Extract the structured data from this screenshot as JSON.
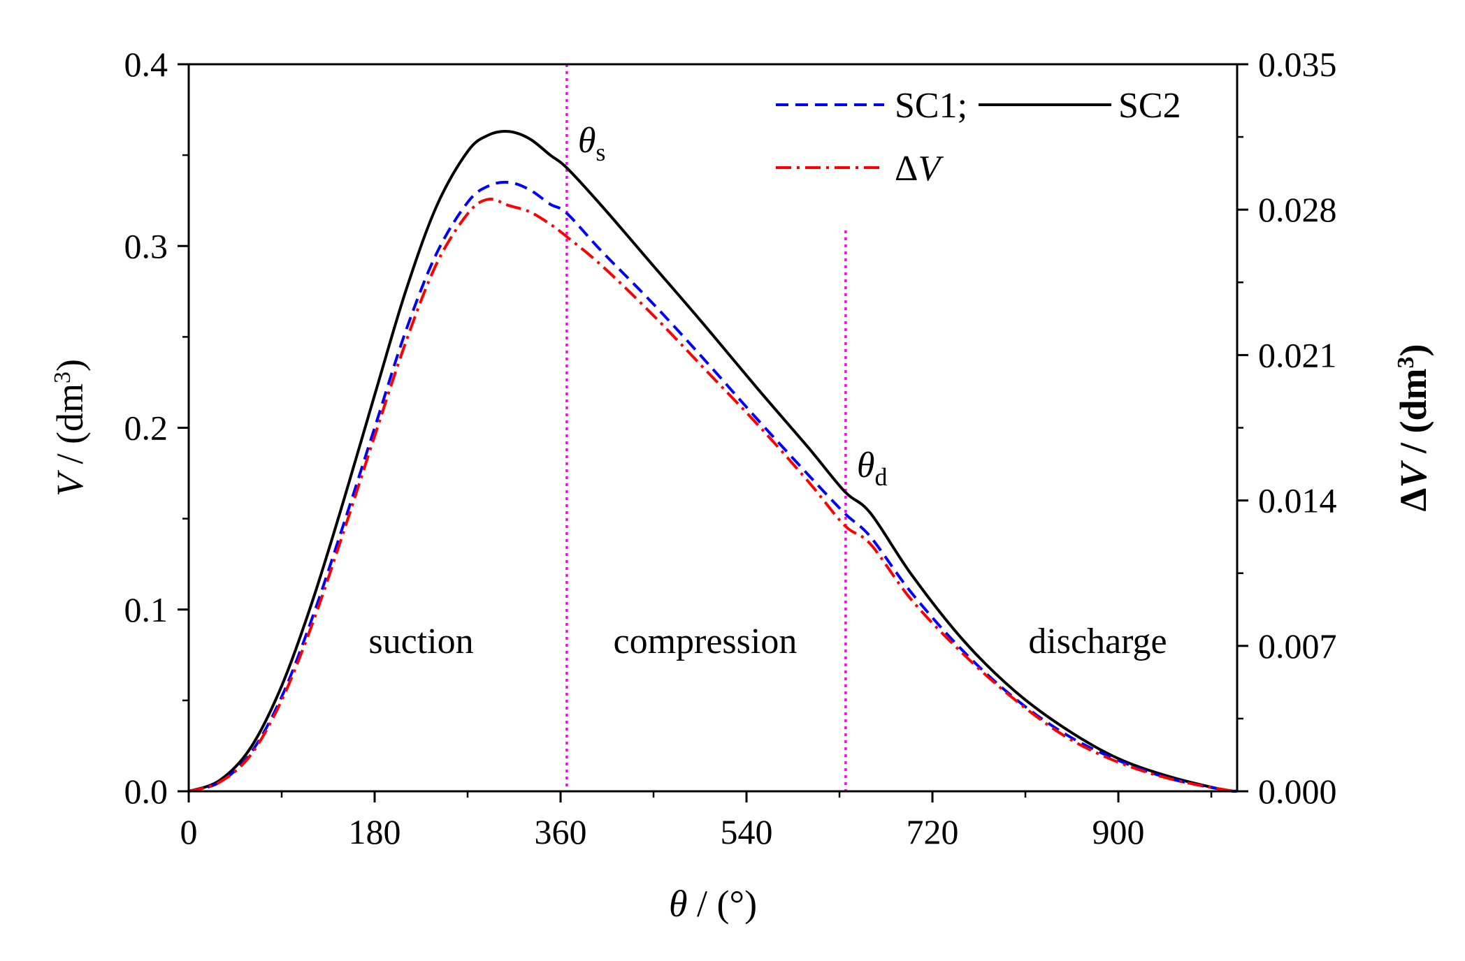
{
  "chart_data": {
    "type": "line",
    "x_axis": {
      "label_symbol": "θ",
      "label_unit": " / (°)",
      "range": [
        0,
        1015
      ],
      "ticks": [
        0,
        180,
        360,
        540,
        720,
        900
      ],
      "tick_labels": [
        "0",
        "180",
        "360",
        "540",
        "720",
        "900"
      ]
    },
    "y_axis_left": {
      "label_symbol": "V",
      "label_unit_prefix": " / (dm",
      "label_unit_sup": "3",
      "label_unit_suffix": ")",
      "range": [
        0,
        0.4
      ],
      "ticks": [
        0,
        0.1,
        0.2,
        0.3,
        0.4
      ],
      "tick_labels": [
        "0.0",
        "0.1",
        "0.2",
        "0.3",
        "0.4"
      ]
    },
    "y_axis_right": {
      "label_symbol": "ΔV",
      "label_unit_prefix": " / (dm",
      "label_unit_sup": "3",
      "label_unit_suffix": ")",
      "range": [
        0,
        0.035
      ],
      "ticks": [
        0,
        0.007,
        0.014,
        0.021,
        0.028,
        0.035
      ],
      "tick_labels": [
        "0.000",
        "0.007",
        "0.014",
        "0.021",
        "0.028",
        "0.035"
      ]
    },
    "series": [
      {
        "name": "SC2",
        "axis": "left",
        "color": "#000000",
        "style": "solid",
        "x": [
          0,
          30,
          60,
          90,
          120,
          150,
          180,
          210,
          240,
          270,
          290,
          310,
          330,
          350,
          366,
          400,
          450,
          500,
          550,
          600,
          635,
          660,
          700,
          750,
          800,
          850,
          900,
          950,
          1000,
          1015
        ],
        "y": [
          0,
          0.006,
          0.024,
          0.058,
          0.105,
          0.16,
          0.218,
          0.275,
          0.322,
          0.352,
          0.361,
          0.363,
          0.359,
          0.35,
          0.343,
          0.322,
          0.289,
          0.256,
          0.222,
          0.189,
          0.165,
          0.153,
          0.119,
          0.083,
          0.055,
          0.034,
          0.018,
          0.008,
          0.001,
          0
        ]
      },
      {
        "name": "SC1",
        "axis": "left",
        "color": "#0000ff",
        "style": "dashed",
        "x": [
          0,
          30,
          60,
          90,
          120,
          150,
          180,
          210,
          240,
          270,
          290,
          310,
          330,
          350,
          366,
          400,
          450,
          500,
          550,
          600,
          635,
          660,
          700,
          750,
          800,
          850,
          900,
          950,
          1000,
          1015
        ],
        "y": [
          0,
          0.005,
          0.021,
          0.052,
          0.096,
          0.147,
          0.2,
          0.253,
          0.296,
          0.324,
          0.333,
          0.335,
          0.331,
          0.323,
          0.318,
          0.297,
          0.268,
          0.237,
          0.205,
          0.174,
          0.153,
          0.14,
          0.109,
          0.077,
          0.051,
          0.031,
          0.017,
          0.007,
          0.001,
          0
        ]
      },
      {
        "name": "ΔV",
        "axis": "right",
        "color": "#ff0000",
        "style": "dashdot",
        "x": [
          0,
          30,
          60,
          90,
          120,
          150,
          180,
          210,
          240,
          270,
          290,
          310,
          330,
          350,
          366,
          400,
          450,
          500,
          550,
          600,
          635,
          660,
          700,
          750,
          800,
          850,
          900,
          950,
          1000,
          1015
        ],
        "y": [
          0,
          0.00044,
          0.00175,
          0.00438,
          0.0081,
          0.0125,
          0.0171,
          0.0216,
          0.0254,
          0.0278,
          0.0285,
          0.0282,
          0.0279,
          0.0273,
          0.0267,
          0.0253,
          0.0229,
          0.0203,
          0.0177,
          0.0149,
          0.0128,
          0.0119,
          0.0092,
          0.0066,
          0.0044,
          0.0026,
          0.0014,
          0.0006,
          0.0001,
          0
        ]
      }
    ],
    "legend": {
      "placement": "top-right",
      "row1": {
        "sc1_label": "SC1;",
        "sc2_label": "SC2"
      },
      "row2": {
        "symbol": "Δ",
        "var": "V"
      }
    },
    "vertical_markers": [
      {
        "x": 366,
        "label": "θ",
        "sub": "s"
      },
      {
        "x": 636,
        "label": "θ",
        "sub": "d"
      }
    ],
    "regions": [
      {
        "label": "suction",
        "x_center": 225
      },
      {
        "label": "compression",
        "x_center": 500
      },
      {
        "label": "discharge",
        "x_center": 880
      }
    ],
    "colors": {
      "marker": "#ff00ff",
      "axis": "#000000"
    }
  }
}
